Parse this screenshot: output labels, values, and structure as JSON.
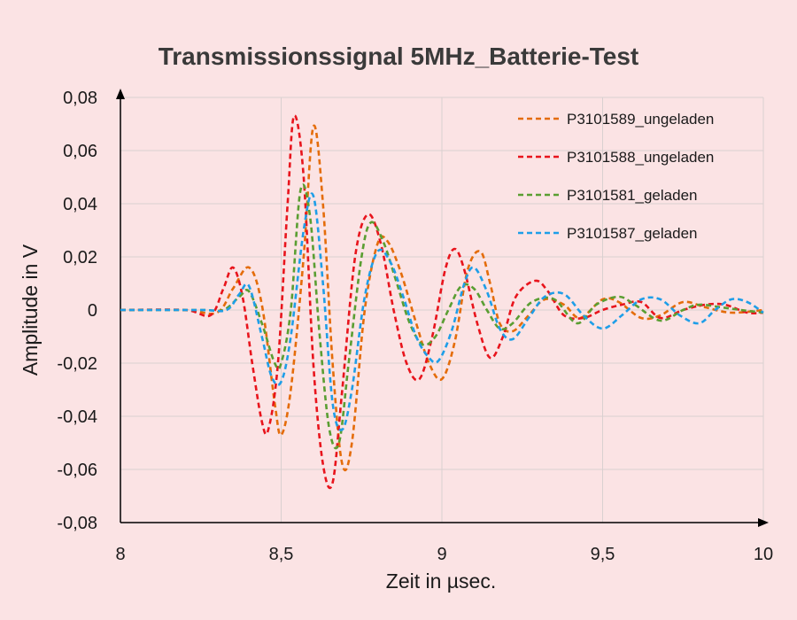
{
  "chart_data": {
    "type": "line",
    "title": "Transmissionssignal 5MHz_Batterie-Test",
    "xlabel": "Zeit in µsec.",
    "ylabel": "Amplitude in V",
    "xlim": [
      8,
      10
    ],
    "ylim": [
      -0.08,
      0.08
    ],
    "x_ticks": [
      8,
      8.5,
      9,
      9.5,
      10
    ],
    "x_tick_labels": [
      "8",
      "8,5",
      "9",
      "9,5",
      "10"
    ],
    "y_ticks": [
      -0.08,
      -0.06,
      -0.04,
      -0.02,
      0,
      0.02,
      0.04,
      0.06,
      0.08
    ],
    "y_tick_labels": [
      "-0,08",
      "-0,06",
      "-0,04",
      "-0,02",
      "0",
      "0,02",
      "0,04",
      "0,06",
      "0,08"
    ],
    "grid": {
      "horizontal": true,
      "vertical": true
    },
    "legend_position": "top-right",
    "series": [
      {
        "name": "P3101589_ungeladen",
        "color": "#e46c0a",
        "points": [
          [
            8,
            0
          ],
          [
            8.2,
            0
          ],
          [
            8.3,
            -0.001
          ],
          [
            8.35,
            0.008
          ],
          [
            8.4,
            0.016
          ],
          [
            8.44,
            0.002
          ],
          [
            8.48,
            -0.035
          ],
          [
            8.5,
            -0.047
          ],
          [
            8.53,
            -0.03
          ],
          [
            8.57,
            0.02
          ],
          [
            8.6,
            0.069
          ],
          [
            8.63,
            0.04
          ],
          [
            8.66,
            -0.02
          ],
          [
            8.69,
            -0.058
          ],
          [
            8.72,
            -0.05
          ],
          [
            8.76,
            0
          ],
          [
            8.8,
            0.025
          ],
          [
            8.83,
            0.026
          ],
          [
            8.87,
            0.015
          ],
          [
            8.92,
            -0.005
          ],
          [
            8.96,
            -0.02
          ],
          [
            9,
            -0.026
          ],
          [
            9.04,
            -0.012
          ],
          [
            9.08,
            0.015
          ],
          [
            9.12,
            0.022
          ],
          [
            9.15,
            0.01
          ],
          [
            9.18,
            -0.005
          ],
          [
            9.22,
            -0.008
          ],
          [
            9.27,
            -0.002
          ],
          [
            9.32,
            0.004
          ],
          [
            9.38,
            0.002
          ],
          [
            9.43,
            -0.003
          ],
          [
            9.5,
            0.004
          ],
          [
            9.55,
            0.003
          ],
          [
            9.62,
            -0.003
          ],
          [
            9.68,
            -0.002
          ],
          [
            9.75,
            0.003
          ],
          [
            9.82,
            0.001
          ],
          [
            9.9,
            -0.001
          ],
          [
            10,
            0
          ]
        ]
      },
      {
        "name": "P3101588_ungeladen",
        "color": "#e8141c",
        "points": [
          [
            8,
            0
          ],
          [
            8.2,
            0
          ],
          [
            8.28,
            -0.002
          ],
          [
            8.32,
            0.008
          ],
          [
            8.35,
            0.016
          ],
          [
            8.38,
            0.005
          ],
          [
            8.41,
            -0.02
          ],
          [
            8.44,
            -0.042
          ],
          [
            8.46,
            -0.045
          ],
          [
            8.49,
            -0.02
          ],
          [
            8.52,
            0.04
          ],
          [
            8.54,
            0.073
          ],
          [
            8.57,
            0.05
          ],
          [
            8.6,
            -0.02
          ],
          [
            8.63,
            -0.058
          ],
          [
            8.66,
            -0.065
          ],
          [
            8.69,
            -0.03
          ],
          [
            8.73,
            0.02
          ],
          [
            8.77,
            0.036
          ],
          [
            8.81,
            0.025
          ],
          [
            8.85,
            0
          ],
          [
            8.89,
            -0.02
          ],
          [
            8.93,
            -0.026
          ],
          [
            8.97,
            -0.01
          ],
          [
            9.01,
            0.015
          ],
          [
            9.04,
            0.023
          ],
          [
            9.07,
            0.015
          ],
          [
            9.11,
            -0.005
          ],
          [
            9.15,
            -0.018
          ],
          [
            9.19,
            -0.01
          ],
          [
            9.23,
            0.005
          ],
          [
            9.29,
            0.011
          ],
          [
            9.33,
            0.007
          ],
          [
            9.38,
            -0.002
          ],
          [
            9.44,
            -0.003
          ],
          [
            9.5,
            0
          ],
          [
            9.56,
            0.002
          ],
          [
            9.62,
            0.003
          ],
          [
            9.68,
            -0.003
          ],
          [
            9.75,
            0
          ],
          [
            9.82,
            0.002
          ],
          [
            9.88,
            0.002
          ],
          [
            9.95,
            -0.001
          ],
          [
            10,
            -0.001
          ]
        ]
      },
      {
        "name": "P3101581_geladen",
        "color": "#5a9e32",
        "points": [
          [
            8,
            0
          ],
          [
            8.25,
            0
          ],
          [
            8.32,
            0
          ],
          [
            8.37,
            0.005
          ],
          [
            8.4,
            0.007
          ],
          [
            8.44,
            -0.005
          ],
          [
            8.48,
            -0.02
          ],
          [
            8.5,
            -0.02
          ],
          [
            8.53,
            0
          ],
          [
            8.56,
            0.045
          ],
          [
            8.59,
            0.035
          ],
          [
            8.62,
            -0.01
          ],
          [
            8.65,
            -0.045
          ],
          [
            8.68,
            -0.05
          ],
          [
            8.71,
            -0.02
          ],
          [
            8.75,
            0.02
          ],
          [
            8.78,
            0.033
          ],
          [
            8.82,
            0.025
          ],
          [
            8.86,
            0.01
          ],
          [
            8.9,
            -0.005
          ],
          [
            8.94,
            -0.013
          ],
          [
            8.98,
            -0.01
          ],
          [
            9.02,
            0
          ],
          [
            9.06,
            0.009
          ],
          [
            9.1,
            0.008
          ],
          [
            9.14,
            0
          ],
          [
            9.18,
            -0.007
          ],
          [
            9.22,
            -0.005
          ],
          [
            9.28,
            0.003
          ],
          [
            9.35,
            0.004
          ],
          [
            9.42,
            -0.005
          ],
          [
            9.48,
            0.002
          ],
          [
            9.55,
            0.005
          ],
          [
            9.6,
            0.002
          ],
          [
            9.68,
            -0.004
          ],
          [
            9.75,
            0
          ],
          [
            9.8,
            0.002
          ],
          [
            9.87,
            0.001
          ],
          [
            9.93,
            0
          ],
          [
            10,
            -0.001
          ]
        ]
      },
      {
        "name": "P3101587_geladen",
        "color": "#1e9ee8",
        "points": [
          [
            8,
            0
          ],
          [
            8.25,
            0
          ],
          [
            8.33,
            0
          ],
          [
            8.37,
            0.006
          ],
          [
            8.4,
            0.009
          ],
          [
            8.44,
            -0.01
          ],
          [
            8.47,
            -0.025
          ],
          [
            8.5,
            -0.027
          ],
          [
            8.53,
            -0.01
          ],
          [
            8.57,
            0.03
          ],
          [
            8.6,
            0.043
          ],
          [
            8.63,
            0.01
          ],
          [
            8.66,
            -0.035
          ],
          [
            8.69,
            -0.045
          ],
          [
            8.72,
            -0.03
          ],
          [
            8.76,
            0.005
          ],
          [
            8.8,
            0.022
          ],
          [
            8.84,
            0.018
          ],
          [
            8.88,
            0.005
          ],
          [
            8.92,
            -0.01
          ],
          [
            8.96,
            -0.018
          ],
          [
            8.99,
            -0.019
          ],
          [
            9.03,
            -0.008
          ],
          [
            9.07,
            0.01
          ],
          [
            9.1,
            0.016
          ],
          [
            9.14,
            0.007
          ],
          [
            9.18,
            -0.007
          ],
          [
            9.22,
            -0.011
          ],
          [
            9.27,
            -0.003
          ],
          [
            9.32,
            0.005
          ],
          [
            9.38,
            0.006
          ],
          [
            9.44,
            -0.002
          ],
          [
            9.5,
            -0.007
          ],
          [
            9.56,
            -0.002
          ],
          [
            9.62,
            0.004
          ],
          [
            9.68,
            0.004
          ],
          [
            9.74,
            -0.002
          ],
          [
            9.8,
            -0.005
          ],
          [
            9.85,
            0
          ],
          [
            9.9,
            0.004
          ],
          [
            9.95,
            0.003
          ],
          [
            10,
            -0.001
          ]
        ]
      }
    ]
  }
}
